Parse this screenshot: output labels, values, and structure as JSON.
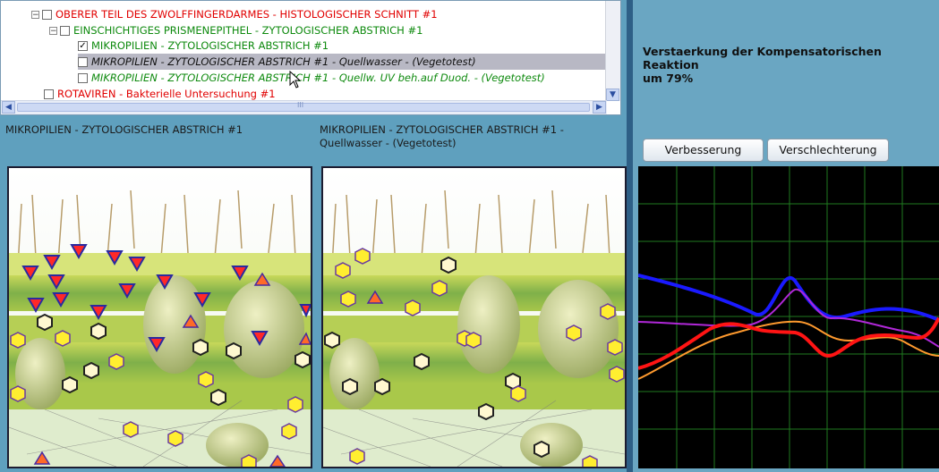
{
  "tree": {
    "items": [
      {
        "label": "OBERER TEIL DES ZWOLFFINGERDARMES - HISTOLOGISCHER SCHNITT #1",
        "checked": false
      },
      {
        "label": "EINSCHICHTIGES PRISMENEPITHEL - ZYTOLOGISCHER ABSTRICH #1",
        "checked": false
      },
      {
        "label": "MIKROPILIEN - ZYTOLOGISCHER ABSTRICH #1",
        "checked": true
      },
      {
        "label": "MIKROPILIEN - ZYTOLOGISCHER ABSTRICH #1 - Quellwasser - (Vegetotest)",
        "checked": false
      },
      {
        "label": "MIKROPILIEN - ZYTOLOGISCHER ABSTRICH #1 - Quellw. UV beh.auf Duod. - (Vegetotest)",
        "checked": false
      },
      {
        "label": "ROTAVIREN - Bakterielle Untersuchung #1",
        "checked": false
      }
    ],
    "scroll_thumb_label": "III"
  },
  "captions": {
    "left": "MIKROPILIEN - ZYTOLOGISCHER ABSTRICH #1",
    "right_line1": "MIKROPILIEN - ZYTOLOGISCHER ABSTRICH #1 -",
    "right_line2": "Quellwasser - (Vegetotest)"
  },
  "status": {
    "text_line1": "Verstaerkung der Kompensatorischen Reaktion",
    "text_line2": "um 79%"
  },
  "buttons": {
    "improve": "Verbesserung",
    "worsen": "Verschlechterung"
  },
  "graph": {
    "colors": {
      "blue": "#1a1aff",
      "purple": "#b028d8",
      "orange": "#ff9a2e",
      "red": "#ff1414",
      "grid": "#1f7a1f"
    }
  }
}
